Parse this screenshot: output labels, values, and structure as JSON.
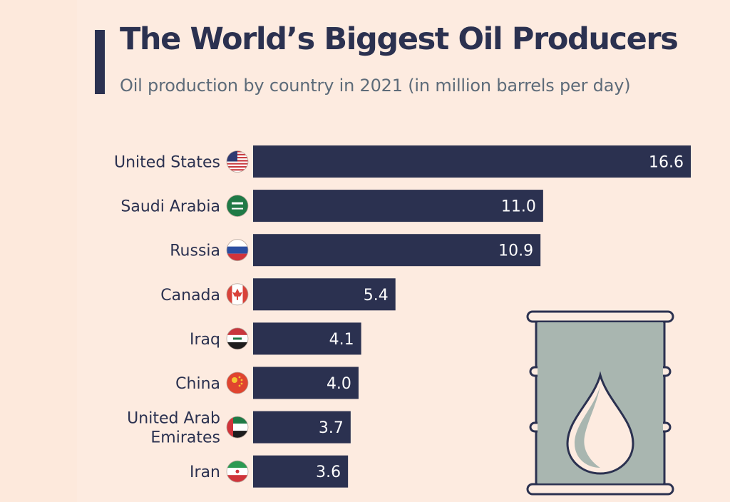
{
  "title": "The World’s Biggest Oil Producers",
  "subtitle": "Oil production by country in 2021 (in million barrels per day)",
  "chart_data": {
    "type": "bar",
    "orientation": "horizontal",
    "title": "The World’s Biggest Oil Producers",
    "subtitle": "Oil production by country in 2021 (in million barrels per day)",
    "categories": [
      "United States",
      "Saudi Arabia",
      "Russia",
      "Canada",
      "Iraq",
      "China",
      "United Arab Emirates",
      "Iran"
    ],
    "category_lines": [
      [
        "United States"
      ],
      [
        "Saudi Arabia"
      ],
      [
        "Russia"
      ],
      [
        "Canada"
      ],
      [
        "Iraq"
      ],
      [
        "China"
      ],
      [
        "United Arab",
        "Emirates"
      ],
      [
        "Iran"
      ]
    ],
    "values": [
      16.6,
      11.0,
      10.9,
      5.4,
      4.1,
      4.0,
      3.7,
      3.6
    ],
    "value_labels": [
      "16.6",
      "11.0",
      "10.9",
      "5.4",
      "4.1",
      "4.0",
      "3.7",
      "3.6"
    ],
    "flags": [
      "us-flag-icon",
      "saudi-arabia-flag-icon",
      "russia-flag-icon",
      "canada-flag-icon",
      "iraq-flag-icon",
      "china-flag-icon",
      "uae-flag-icon",
      "iran-flag-icon"
    ],
    "xlim": [
      0,
      16.6
    ],
    "grid": false,
    "legend": "none",
    "bar_color": "#2b3150"
  },
  "decor": {
    "barrel_icon": "oil-barrel-icon",
    "barrel_color": "#a9b6b0",
    "outline_color": "#2b3150"
  }
}
